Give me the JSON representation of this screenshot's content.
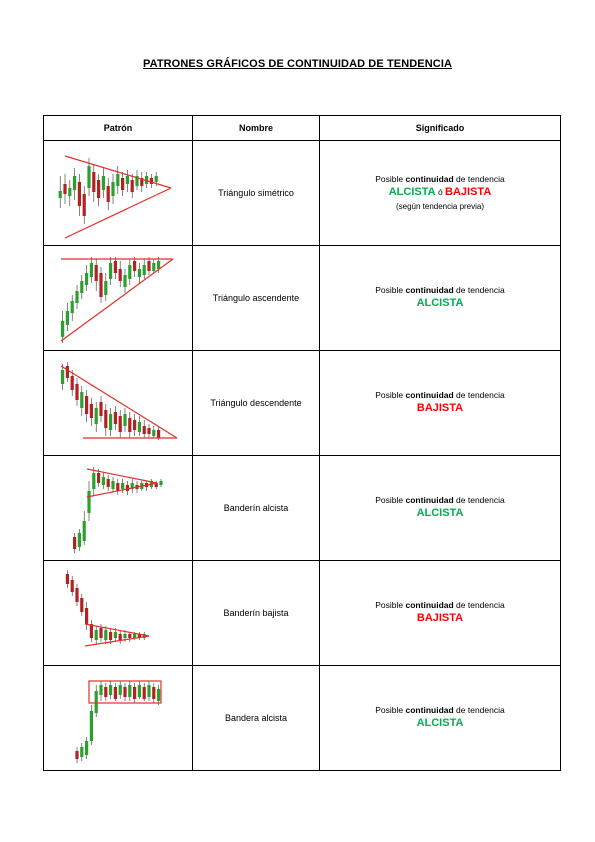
{
  "title": "PATRONES GRÁFICOS DE CONTINUIDAD DE TENDENCIA",
  "headers": {
    "patron": "Patrón",
    "nombre": "Nombre",
    "significado": "Significado"
  },
  "colors": {
    "alcista": "#00b050",
    "bajista": "#ff0000",
    "candle_green": "#2ca02c",
    "candle_red": "#b22222",
    "pattern_line": "#e0302a"
  },
  "rows": [
    {
      "name": "Triángulo simétrico",
      "icon": "symmetric-triangle-chart",
      "sig_pre": "Posible ",
      "sig_bold": "continuidad",
      "sig_post": " de tendencia",
      "trend1": "ALCISTA",
      "sep": " ó ",
      "trend2": "BAJISTA",
      "note": "(según tendencia previa)"
    },
    {
      "name": "Triángulo ascendente",
      "icon": "ascending-triangle-chart",
      "sig_pre": "Posible ",
      "sig_bold": "continuidad",
      "sig_post": " de tendencia",
      "trend": "ALCISTA"
    },
    {
      "name": "Triángulo descendente",
      "icon": "descending-triangle-chart",
      "sig_pre": "Posible ",
      "sig_bold": "continuidad",
      "sig_post": " de tendencia",
      "trend": "BAJISTA"
    },
    {
      "name": "Banderín alcista",
      "icon": "bullish-pennant-chart",
      "sig_pre": "Posible ",
      "sig_bold": "continuidad",
      "sig_post": " de tendencia",
      "trend": "ALCISTA"
    },
    {
      "name": "Banderín bajista",
      "icon": "bearish-pennant-chart",
      "sig_pre": "Posible ",
      "sig_bold": "continuidad",
      "sig_post": " de tendencia",
      "trend": "BAJISTA"
    },
    {
      "name": "Bandera alcista",
      "icon": "bullish-flag-chart",
      "sig_pre": "Posible ",
      "sig_bold": "continuidad",
      "sig_post": " de tendencia",
      "trend": "ALCISTA"
    }
  ]
}
